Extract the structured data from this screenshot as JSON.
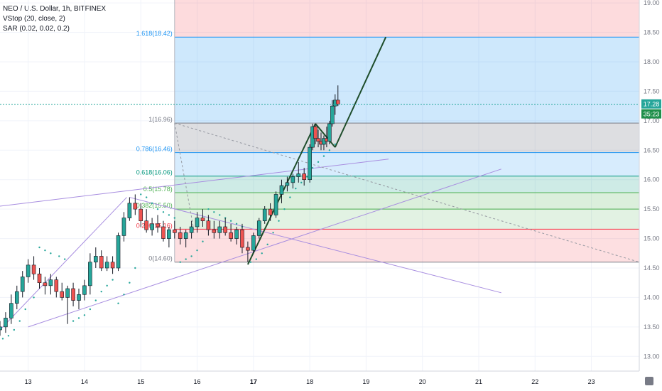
{
  "chart_data": {
    "type": "candlestick",
    "legend": [
      "NEO / U.S. Dollar, 1h, BITFINEX",
      "VStop (20, close, 2)",
      "SAR (0.02, 0.02, 0.2)"
    ],
    "x_ticks": [
      "13",
      "14",
      "15",
      "16",
      "17",
      "18",
      "19",
      "20",
      "21",
      "22",
      "23"
    ],
    "y_ticks": [
      "19.00",
      "18.50",
      "18.00",
      "17.50",
      "17.00",
      "16.50",
      "16.00",
      "15.50",
      "15.00",
      "14.50",
      "14.00",
      "13.50",
      "13.00"
    ],
    "ylim": [
      12.75,
      19.05
    ],
    "x_range": [
      12.5,
      23.85
    ],
    "price_label": "17.28",
    "countdown_label": "35:23",
    "fib_levels": [
      {
        "label": "1.618(18.42)",
        "value": 18.42,
        "color": "#2196f3"
      },
      {
        "label": "1(16.96)",
        "value": 16.96,
        "color": "#787b86"
      },
      {
        "label": "0.786(16.46)",
        "value": 16.46,
        "color": "#2196f3"
      },
      {
        "label": "0.618(16.06)",
        "value": 16.06,
        "color": "#089981"
      },
      {
        "label": "0.5(15.78)",
        "value": 15.78,
        "color": "#4caf50"
      },
      {
        "label": "0.382(15.50)",
        "value": 15.5,
        "color": "#4caf50"
      },
      {
        "label": "0.236(15.16)",
        "value": 15.16,
        "color": "#f23645"
      },
      {
        "label": "0(14.60)",
        "value": 14.6,
        "color": "#787b86"
      }
    ],
    "fib_start_day": 15.6,
    "candles": [
      [
        12.5,
        13.45,
        13.6,
        13.35,
        13.5
      ],
      [
        12.6,
        13.5,
        13.75,
        13.4,
        13.65
      ],
      [
        12.7,
        13.65,
        14.05,
        13.55,
        13.9
      ],
      [
        12.8,
        13.9,
        14.2,
        13.8,
        14.1
      ],
      [
        12.9,
        14.1,
        14.45,
        14.0,
        14.35
      ],
      [
        13.0,
        14.35,
        14.65,
        14.25,
        14.55
      ],
      [
        13.1,
        14.55,
        14.7,
        14.3,
        14.4
      ],
      [
        13.2,
        14.4,
        14.5,
        14.15,
        14.25
      ],
      [
        13.3,
        14.25,
        14.35,
        14.05,
        14.2
      ],
      [
        13.4,
        14.2,
        14.4,
        14.05,
        14.3
      ],
      [
        13.5,
        14.3,
        14.35,
        14.0,
        14.1
      ],
      [
        13.6,
        14.1,
        14.25,
        13.95,
        14.0
      ],
      [
        13.7,
        14.0,
        14.2,
        13.55,
        14.15
      ],
      [
        13.8,
        14.15,
        14.25,
        13.85,
        13.95
      ],
      [
        13.9,
        13.95,
        14.15,
        13.8,
        14.05
      ],
      [
        14.0,
        14.05,
        14.3,
        13.95,
        14.2
      ],
      [
        14.1,
        14.2,
        14.75,
        14.05,
        14.6
      ],
      [
        14.2,
        14.6,
        14.85,
        14.5,
        14.7
      ],
      [
        14.3,
        14.7,
        14.8,
        14.45,
        14.5
      ],
      [
        14.4,
        14.5,
        14.7,
        14.45,
        14.6
      ],
      [
        14.5,
        14.6,
        14.7,
        14.4,
        14.5
      ],
      [
        14.6,
        14.5,
        15.1,
        14.45,
        15.05
      ],
      [
        14.7,
        15.05,
        15.45,
        14.95,
        15.35
      ],
      [
        14.8,
        15.35,
        15.7,
        15.3,
        15.6
      ],
      [
        14.9,
        15.6,
        15.75,
        15.4,
        15.5
      ],
      [
        15.0,
        15.5,
        15.6,
        15.2,
        15.3
      ],
      [
        15.1,
        15.3,
        15.5,
        15.1,
        15.15
      ],
      [
        15.2,
        15.15,
        15.35,
        15.05,
        15.25
      ],
      [
        15.3,
        15.25,
        15.4,
        15.1,
        15.2
      ],
      [
        15.4,
        15.2,
        15.3,
        14.95,
        15.0
      ],
      [
        15.5,
        15.0,
        15.2,
        14.85,
        15.15
      ],
      [
        15.6,
        15.15,
        15.3,
        15.0,
        15.1
      ],
      [
        15.7,
        15.1,
        15.2,
        14.9,
        15.0
      ],
      [
        15.8,
        15.0,
        15.15,
        14.85,
        15.1
      ],
      [
        15.9,
        15.1,
        15.3,
        15.0,
        15.2
      ],
      [
        16.0,
        15.2,
        15.45,
        15.1,
        15.35
      ],
      [
        16.1,
        15.35,
        15.5,
        15.2,
        15.3
      ],
      [
        16.2,
        15.3,
        15.4,
        15.05,
        15.15
      ],
      [
        16.3,
        15.15,
        15.3,
        15.0,
        15.1
      ],
      [
        16.4,
        15.1,
        15.3,
        15.0,
        15.2
      ],
      [
        16.5,
        15.2,
        15.35,
        15.05,
        15.1
      ],
      [
        16.6,
        15.1,
        15.25,
        14.95,
        15.0
      ],
      [
        16.7,
        15.0,
        15.2,
        14.9,
        15.15
      ],
      [
        16.8,
        15.15,
        15.25,
        14.75,
        14.85
      ],
      [
        16.9,
        14.85,
        14.95,
        14.6,
        14.8
      ],
      [
        17.0,
        14.8,
        15.1,
        14.75,
        15.05
      ],
      [
        17.1,
        15.05,
        15.35,
        15.0,
        15.3
      ],
      [
        17.2,
        15.3,
        15.55,
        15.25,
        15.5
      ],
      [
        17.3,
        15.5,
        15.6,
        15.3,
        15.4
      ],
      [
        17.4,
        15.4,
        15.8,
        15.35,
        15.75
      ],
      [
        17.5,
        15.75,
        16.0,
        15.6,
        15.9
      ],
      [
        17.6,
        15.9,
        16.05,
        15.8,
        15.95
      ],
      [
        17.7,
        15.95,
        16.1,
        15.85,
        16.05
      ],
      [
        17.8,
        16.05,
        16.3,
        15.95,
        16.1
      ],
      [
        17.9,
        16.1,
        16.2,
        15.9,
        16.0
      ],
      [
        18.0,
        16.0,
        16.6,
        15.95,
        16.55
      ],
      [
        18.05,
        16.55,
        16.95,
        16.5,
        16.9
      ],
      [
        18.1,
        16.9,
        16.95,
        16.6,
        16.7
      ],
      [
        18.15,
        16.7,
        16.85,
        16.55,
        16.65
      ],
      [
        18.2,
        16.65,
        16.8,
        16.5,
        16.6
      ],
      [
        18.25,
        16.6,
        16.75,
        16.5,
        16.7
      ],
      [
        18.3,
        16.7,
        16.9,
        16.55,
        16.65
      ],
      [
        18.35,
        16.65,
        17.0,
        16.6,
        16.95
      ],
      [
        18.4,
        16.95,
        17.35,
        16.9,
        17.25
      ],
      [
        18.45,
        17.25,
        17.45,
        17.1,
        17.35
      ],
      [
        18.5,
        17.35,
        17.6,
        17.25,
        17.28
      ]
    ],
    "sar": [
      [
        12.55,
        13.3
      ],
      [
        12.65,
        13.35
      ],
      [
        12.75,
        13.45
      ],
      [
        12.85,
        13.6
      ],
      [
        12.95,
        13.8
      ],
      [
        13.1,
        14.0
      ],
      [
        13.2,
        14.85
      ],
      [
        13.3,
        14.8
      ],
      [
        13.4,
        14.75
      ],
      [
        13.55,
        14.7
      ],
      [
        13.65,
        14.65
      ],
      [
        13.8,
        13.6
      ],
      [
        13.9,
        13.65
      ],
      [
        14.0,
        13.7
      ],
      [
        14.1,
        13.8
      ],
      [
        14.2,
        13.95
      ],
      [
        14.3,
        14.1
      ],
      [
        14.4,
        14.2
      ],
      [
        14.5,
        14.3
      ],
      [
        14.6,
        13.9
      ],
      [
        14.7,
        14.05
      ],
      [
        14.8,
        14.25
      ],
      [
        14.9,
        14.5
      ],
      [
        15.0,
        15.75
      ],
      [
        15.1,
        15.7
      ],
      [
        15.2,
        15.6
      ],
      [
        15.3,
        15.5
      ],
      [
        15.4,
        15.45
      ],
      [
        15.5,
        15.4
      ],
      [
        15.6,
        15.35
      ],
      [
        15.7,
        14.6
      ],
      [
        15.8,
        14.65
      ],
      [
        15.9,
        14.7
      ],
      [
        16.0,
        14.8
      ],
      [
        16.1,
        14.95
      ],
      [
        16.2,
        15.5
      ],
      [
        16.3,
        15.45
      ],
      [
        16.4,
        15.4
      ],
      [
        16.5,
        15.35
      ],
      [
        16.6,
        15.3
      ],
      [
        16.7,
        15.25
      ],
      [
        16.8,
        15.2
      ],
      [
        16.95,
        14.6
      ],
      [
        17.05,
        14.65
      ],
      [
        17.15,
        14.75
      ],
      [
        17.25,
        14.9
      ],
      [
        17.35,
        15.1
      ],
      [
        17.45,
        15.3
      ],
      [
        17.55,
        15.5
      ],
      [
        17.65,
        15.7
      ],
      [
        17.75,
        15.85
      ],
      [
        17.85,
        15.95
      ],
      [
        17.95,
        16.05
      ],
      [
        18.05,
        16.2
      ],
      [
        18.15,
        16.3
      ],
      [
        18.25,
        16.4
      ],
      [
        18.35,
        16.5
      ],
      [
        18.45,
        16.6
      ]
    ],
    "trendlines": [
      {
        "points": [
          [
            12.5,
            15.55
          ],
          [
            19.4,
            16.35
          ]
        ],
        "color": "#a88ee0",
        "dash": false
      },
      {
        "points": [
          [
            13.0,
            13.5
          ],
          [
            21.4,
            16.18
          ]
        ],
        "color": "#a88ee0",
        "dash": false
      },
      {
        "points": [
          [
            14.8,
            15.7
          ],
          [
            21.4,
            14.08
          ]
        ],
        "color": "#a88ee0",
        "dash": false
      },
      {
        "points": [
          [
            12.5,
            13.45
          ],
          [
            14.75,
            15.7
          ]
        ],
        "color": "#a88ee0",
        "dash": false
      },
      {
        "points": [
          [
            15.6,
            16.96
          ],
          [
            23.85,
            14.6
          ]
        ],
        "color": "#9598a1",
        "dash": true
      },
      {
        "points": [
          [
            15.6,
            16.96
          ],
          [
            15.95,
            15.1
          ]
        ],
        "color": "#9598a1",
        "dash": true
      },
      {
        "points": [
          [
            16.9,
            14.56
          ],
          [
            18.1,
            16.95
          ]
        ],
        "color": "#1e4d2b",
        "dash": false
      },
      {
        "points": [
          [
            18.1,
            16.95
          ],
          [
            18.45,
            16.55
          ]
        ],
        "color": "#1e4d2b",
        "dash": false
      },
      {
        "points": [
          [
            18.45,
            16.55
          ],
          [
            19.35,
            18.42
          ]
        ],
        "color": "#1e4d2b",
        "dash": false
      }
    ],
    "colors": {
      "up": "#26a69a",
      "down": "#ef5350",
      "wick": "#131722",
      "sar": "#26a69a",
      "price_line": "#26a69a"
    }
  }
}
